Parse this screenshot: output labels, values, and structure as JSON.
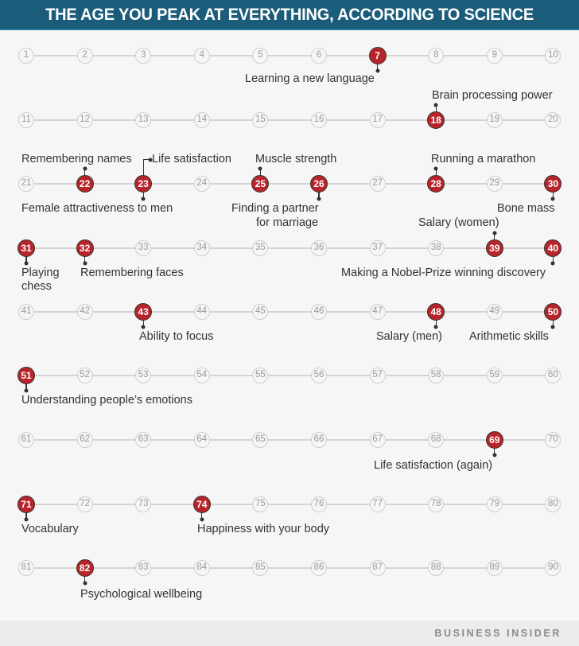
{
  "header": {
    "title": "THE AGE YOU PEAK AT EVERYTHING, ACCORDING TO SCIENCE"
  },
  "footer": {
    "brand": "BUSINESS INSIDER"
  },
  "colors": {
    "title_bar": "#1a5c7a",
    "peak_marker": "#b7242a",
    "plain_marker_border": "#cfcfcf",
    "background": "#f6f6f6",
    "text": "#333333"
  },
  "chart_data": {
    "type": "timeline",
    "title": "THE AGE YOU PEAK AT EVERYTHING, ACCORDING TO SCIENCE",
    "x_range": [
      1,
      90
    ],
    "rows_of": 10,
    "source": "BUSINESS INSIDER",
    "peaks": [
      {
        "age": 7,
        "label": "Learning a new language",
        "side": "below"
      },
      {
        "age": 18,
        "label": "Brain processing power",
        "side": "above"
      },
      {
        "age": 22,
        "label": "Remembering names",
        "side": "above"
      },
      {
        "age": 23,
        "label": "Female attractiveness to men",
        "side": "below"
      },
      {
        "age": 23,
        "label": "Life satisfaction",
        "side": "above"
      },
      {
        "age": 25,
        "label": "Muscle strength",
        "side": "above"
      },
      {
        "age": 26,
        "label": "Finding a partner for marriage",
        "side": "below"
      },
      {
        "age": 28,
        "label": "Running a marathon",
        "side": "above"
      },
      {
        "age": 30,
        "label": "Bone mass",
        "side": "below"
      },
      {
        "age": 31,
        "label": "Playing chess",
        "side": "below"
      },
      {
        "age": 32,
        "label": "Remembering faces",
        "side": "below"
      },
      {
        "age": 39,
        "label": "Salary (women)",
        "side": "above"
      },
      {
        "age": 40,
        "label": "Making a Nobel-Prize winning discovery",
        "side": "below"
      },
      {
        "age": 43,
        "label": "Ability to focus",
        "side": "below"
      },
      {
        "age": 48,
        "label": "Salary (men)",
        "side": "below"
      },
      {
        "age": 50,
        "label": "Arithmetic skills",
        "side": "below"
      },
      {
        "age": 51,
        "label": "Understanding people's emotions",
        "side": "below"
      },
      {
        "age": 69,
        "label": "Life satisfaction (again)",
        "side": "below"
      },
      {
        "age": 71,
        "label": "Vocabulary",
        "side": "below"
      },
      {
        "age": 74,
        "label": "Happiness with your body",
        "side": "below"
      },
      {
        "age": 82,
        "label": "Psychological wellbeing",
        "side": "below"
      }
    ]
  },
  "labels": {
    "l7": "Learning a new language",
    "l18": "Brain processing power",
    "l22": "Remembering names",
    "l23a": "Life satisfaction",
    "l23b": "Female attractiveness to men",
    "l25": "Muscle strength",
    "l26a": "Finding a partner",
    "l26b": "for marriage",
    "l28": "Running a marathon",
    "l30": "Bone mass",
    "l31a": "Playing",
    "l31b": "chess",
    "l32": "Remembering faces",
    "l39": "Salary (women)",
    "l40": "Making a Nobel-Prize winning discovery",
    "l43": "Ability to focus",
    "l48": "Salary (men)",
    "l50": "Arithmetic skills",
    "l51": "Understanding people’s emotions",
    "l69": "Life satisfaction (again)",
    "l71": "Vocabulary",
    "l74": "Happiness with your body",
    "l82": "Psychological wellbeing"
  }
}
